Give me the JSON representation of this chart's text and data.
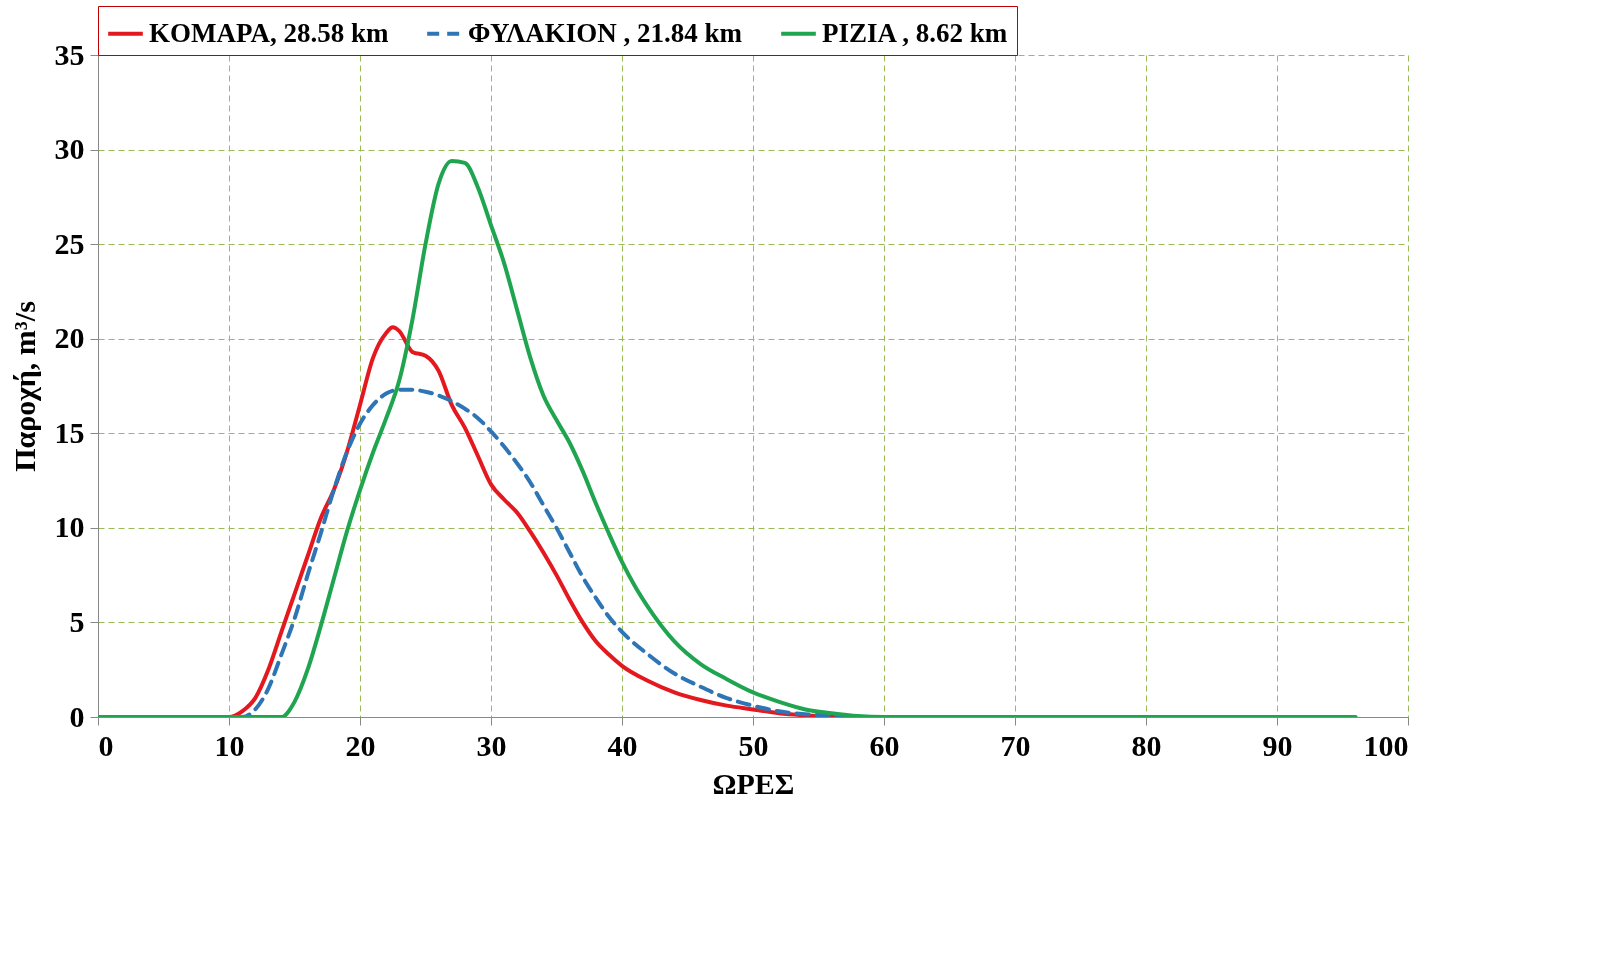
{
  "chart_data": {
    "type": "line",
    "xlabel": "ΩΡΕΣ",
    "ylabel": "Παροχή,  m³/s",
    "xlim": [
      0,
      100
    ],
    "xticks": [
      0,
      10,
      20,
      30,
      40,
      50,
      60,
      70,
      80,
      90,
      100
    ],
    "ylim": [
      0,
      35
    ],
    "yticks": [
      0,
      5,
      10,
      15,
      20,
      25,
      30,
      35
    ],
    "grid": true,
    "legend": "top",
    "series": [
      {
        "name": "KOMAPA, 28.58 km",
        "color": "#e3191f",
        "line_style": "solid",
        "x": [
          0,
          5,
          10,
          11,
          12,
          13,
          14,
          15,
          16,
          17,
          18,
          19,
          20,
          21,
          22,
          22.5,
          23,
          24,
          25,
          26,
          27,
          28,
          29,
          30,
          31,
          32,
          33,
          34,
          35,
          36,
          37,
          38,
          39,
          40,
          42,
          44,
          46,
          48,
          50,
          52,
          55,
          58
        ],
        "values": [
          0,
          0,
          0,
          0.3,
          1,
          2.5,
          4.5,
          6.5,
          8.5,
          10.5,
          12,
          14,
          16.5,
          19,
          20.3,
          20.6,
          20.4,
          19.3,
          19.1,
          18.3,
          16.5,
          15.3,
          13.8,
          12.3,
          11.5,
          10.8,
          9.8,
          8.7,
          7.5,
          6.2,
          5,
          4,
          3.3,
          2.7,
          1.9,
          1.3,
          0.9,
          0.6,
          0.4,
          0.2,
          0.05,
          0
        ]
      },
      {
        "name": "ΦΥΛΑΚΙΟΝ , 21.84 km",
        "color": "#2e75b6",
        "line_style": "dashed",
        "x": [
          0,
          5,
          11,
          12,
          13,
          14,
          15,
          16,
          17,
          18,
          19,
          20,
          21,
          22,
          23,
          24,
          25,
          26,
          27,
          28,
          29,
          30,
          31,
          32,
          33,
          34,
          35,
          36,
          37,
          38,
          39,
          40,
          42,
          44,
          46,
          48,
          50,
          52,
          55,
          58
        ],
        "values": [
          0,
          0,
          0,
          0.4,
          1.5,
          3.3,
          5.2,
          7.5,
          9.7,
          12,
          14,
          15.5,
          16.5,
          17.1,
          17.3,
          17.3,
          17.2,
          17,
          16.7,
          16.3,
          15.8,
          15.1,
          14.3,
          13.4,
          12.4,
          11.2,
          10,
          8.7,
          7.4,
          6.3,
          5.3,
          4.5,
          3.3,
          2.3,
          1.6,
          1,
          0.6,
          0.3,
          0.1,
          0
        ]
      },
      {
        "name": "PIZIA , 8.62 km",
        "color": "#1fa54f",
        "line_style": "solid",
        "x": [
          0,
          5,
          10,
          14,
          15,
          16,
          17,
          18,
          19,
          20,
          21,
          22,
          23,
          24,
          25,
          26,
          27,
          28,
          29,
          30,
          31,
          32,
          33,
          34,
          35,
          36,
          37,
          38,
          39,
          40,
          41,
          42,
          44,
          46,
          48,
          50,
          52,
          54,
          56,
          58,
          60,
          70,
          80,
          96
        ],
        "values": [
          0,
          0,
          0,
          0,
          0.8,
          2.5,
          4.8,
          7.3,
          9.8,
          12,
          14,
          15.8,
          17.8,
          21,
          25,
          28.2,
          29.4,
          29.3,
          28,
          26,
          24,
          21.5,
          19,
          17,
          15.7,
          14.5,
          13,
          11.3,
          9.7,
          8.2,
          6.9,
          5.8,
          4,
          2.8,
          2,
          1.3,
          0.8,
          0.4,
          0.2,
          0.05,
          0,
          0,
          0,
          0
        ]
      }
    ]
  }
}
